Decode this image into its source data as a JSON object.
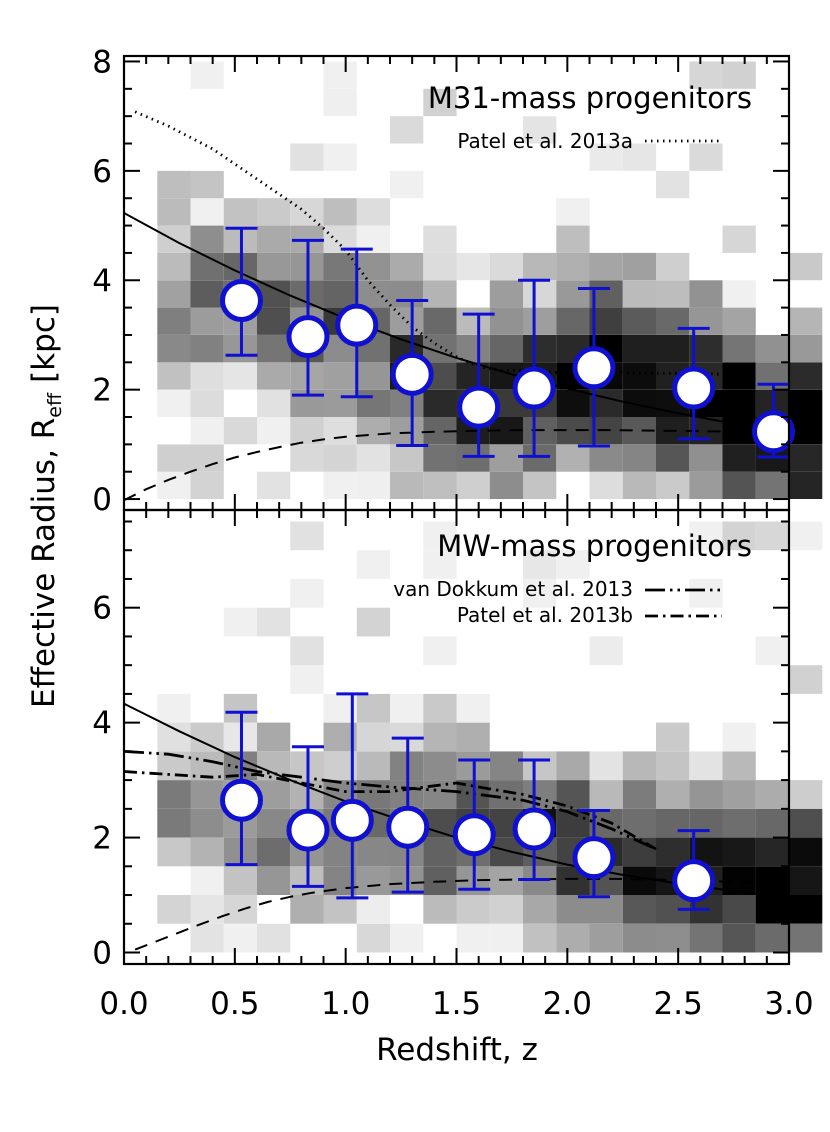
{
  "figure": {
    "ylabel_main": "Effective Radius, R",
    "ylabel_sub": "eff",
    "ylabel_unit": "[kpc]",
    "xlabel": "Redshift, z"
  },
  "chart_data": [
    {
      "type": "scatter",
      "panel": "top",
      "title": "M31-mass progenitors",
      "xlim": [
        0,
        3
      ],
      "ylim": [
        -0.2,
        8.1
      ],
      "xticks": [
        "0.0",
        "0.5",
        "1.0",
        "1.5",
        "2.0",
        "2.5",
        "3.0"
      ],
      "yticks": [
        "0",
        "2",
        "4",
        "6",
        "8"
      ],
      "legend": [
        {
          "label": "Patel et al. 2013a",
          "style": "dotted"
        }
      ],
      "series": [
        {
          "style": "circles-with-errorbars",
          "color": "#1010d0",
          "points": [
            {
              "x": 0.53,
              "y": 3.63,
              "lo": 2.63,
              "hi": 4.95
            },
            {
              "x": 0.83,
              "y": 2.97,
              "lo": 1.9,
              "hi": 4.73
            },
            {
              "x": 1.05,
              "y": 3.18,
              "lo": 1.87,
              "hi": 4.57
            },
            {
              "x": 1.3,
              "y": 2.28,
              "lo": 0.98,
              "hi": 3.63
            },
            {
              "x": 1.6,
              "y": 1.68,
              "lo": 0.78,
              "hi": 3.38
            },
            {
              "x": 1.85,
              "y": 2.03,
              "lo": 0.78,
              "hi": 4.0
            },
            {
              "x": 2.12,
              "y": 2.4,
              "lo": 0.97,
              "hi": 3.85
            },
            {
              "x": 2.57,
              "y": 2.03,
              "lo": 1.1,
              "hi": 3.12
            },
            {
              "x": 2.93,
              "y": 1.23,
              "lo": 0.77,
              "hi": 2.1
            }
          ]
        },
        {
          "style": "solid",
          "x": [
            0,
            0.25,
            0.5,
            0.75,
            1.0,
            1.25,
            1.5,
            1.75,
            2.0,
            2.25,
            2.5,
            2.75,
            3.0
          ],
          "y": [
            5.23,
            4.68,
            4.18,
            3.72,
            3.3,
            2.92,
            2.58,
            2.28,
            2.02,
            1.78,
            1.57,
            1.38,
            1.22
          ]
        },
        {
          "style": "dashed",
          "x": [
            0,
            0.1,
            0.2,
            0.3,
            0.4,
            0.5,
            0.6,
            0.7,
            0.8,
            0.9,
            1.0,
            1.2,
            1.4,
            1.6,
            1.8,
            2.0,
            2.2,
            2.4,
            2.6,
            2.8,
            3.0
          ],
          "y": [
            -0.02,
            0.18,
            0.35,
            0.5,
            0.64,
            0.76,
            0.86,
            0.95,
            1.03,
            1.09,
            1.14,
            1.2,
            1.23,
            1.25,
            1.26,
            1.26,
            1.26,
            1.25,
            1.24,
            1.23,
            1.22
          ]
        },
        {
          "name": "Patel et al. 2013a",
          "style": "dotted",
          "x": [
            0.05,
            0.2,
            0.4,
            0.6,
            0.8,
            0.9,
            1.0,
            1.1,
            1.2,
            1.3,
            1.4,
            1.5,
            1.6,
            1.7,
            1.8,
            1.9,
            2.0,
            2.2,
            2.4,
            2.6,
            2.7
          ],
          "y": [
            7.08,
            6.82,
            6.4,
            5.85,
            5.3,
            4.95,
            4.55,
            4.0,
            3.55,
            3.15,
            2.85,
            2.6,
            2.42,
            2.35,
            2.35,
            2.33,
            2.3,
            2.32,
            2.3,
            2.3,
            2.28
          ]
        }
      ]
    },
    {
      "type": "scatter",
      "panel": "bottom",
      "title": "MW-mass progenitors",
      "xlim": [
        0,
        3
      ],
      "ylim": [
        -0.2,
        7.7
      ],
      "xticks": [
        "0.0",
        "0.5",
        "1.0",
        "1.5",
        "2.0",
        "2.5",
        "3.0"
      ],
      "yticks": [
        "0",
        "2",
        "4",
        "6"
      ],
      "legend": [
        {
          "label": "van Dokkum et al. 2013",
          "style": "dash-dot-dot"
        },
        {
          "label": "Patel et al. 2013b",
          "style": "dash-dot"
        }
      ],
      "series": [
        {
          "style": "circles-with-errorbars",
          "color": "#1010d0",
          "points": [
            {
              "x": 0.53,
              "y": 2.65,
              "lo": 1.53,
              "hi": 4.18
            },
            {
              "x": 0.83,
              "y": 2.13,
              "lo": 1.15,
              "hi": 3.58
            },
            {
              "x": 1.03,
              "y": 2.3,
              "lo": 0.95,
              "hi": 4.5
            },
            {
              "x": 1.28,
              "y": 2.18,
              "lo": 1.05,
              "hi": 3.73
            },
            {
              "x": 1.58,
              "y": 2.05,
              "lo": 1.1,
              "hi": 3.35
            },
            {
              "x": 1.85,
              "y": 2.15,
              "lo": 1.27,
              "hi": 3.35
            },
            {
              "x": 2.12,
              "y": 1.65,
              "lo": 0.97,
              "hi": 2.47
            },
            {
              "x": 2.57,
              "y": 1.25,
              "lo": 0.75,
              "hi": 2.12
            }
          ]
        },
        {
          "style": "solid",
          "x": [
            0,
            0.25,
            0.5,
            0.75,
            1.0,
            1.25,
            1.5,
            1.75,
            2.0,
            2.25,
            2.5,
            2.75,
            3.0
          ],
          "y": [
            4.33,
            3.85,
            3.4,
            3.0,
            2.63,
            2.3,
            2.0,
            1.75,
            1.53,
            1.35,
            1.2,
            1.07,
            0.97
          ]
        },
        {
          "style": "dashed",
          "x": [
            0.05,
            0.15,
            0.25,
            0.35,
            0.45,
            0.55,
            0.65,
            0.75,
            0.85,
            1.0,
            1.2,
            1.4,
            1.6,
            1.8,
            2.0,
            2.2,
            2.4,
            2.6,
            2.8,
            3.0
          ],
          "y": [
            0.05,
            0.2,
            0.35,
            0.5,
            0.64,
            0.77,
            0.88,
            0.97,
            1.04,
            1.12,
            1.19,
            1.23,
            1.26,
            1.27,
            1.28,
            1.28,
            1.27,
            1.25,
            1.22,
            1.18
          ]
        },
        {
          "name": "van Dokkum et al. 2013",
          "style": "dash-dot-dot",
          "x": [
            0,
            0.2,
            0.4,
            0.6,
            0.8,
            1.0,
            1.2,
            1.5,
            1.8,
            2.0,
            2.2,
            2.4
          ],
          "y": [
            3.5,
            3.45,
            3.32,
            3.15,
            3.05,
            2.95,
            2.88,
            2.8,
            2.65,
            2.45,
            2.15,
            1.8
          ]
        },
        {
          "name": "Patel et al. 2013b",
          "style": "dash-dot",
          "x": [
            0,
            0.2,
            0.4,
            0.6,
            0.8,
            1.0,
            1.2,
            1.4,
            1.5,
            1.6,
            1.8,
            2.0,
            2.2,
            2.4
          ],
          "y": [
            3.15,
            3.1,
            3.05,
            3.1,
            2.95,
            2.8,
            2.8,
            2.9,
            2.95,
            2.88,
            2.75,
            2.55,
            2.25,
            1.8
          ]
        }
      ]
    }
  ]
}
